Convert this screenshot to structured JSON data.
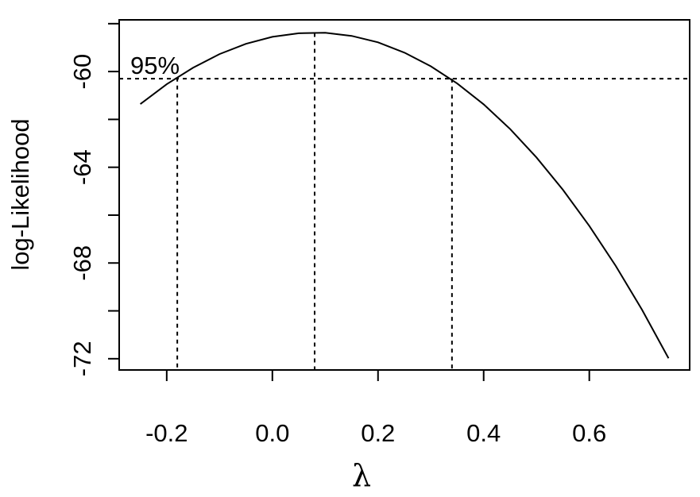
{
  "chart_data": {
    "type": "line",
    "xlabel": "λ",
    "ylabel": "log-Likelihood",
    "annotation": "95%",
    "x": [
      -0.25,
      -0.2,
      -0.15,
      -0.1,
      -0.05,
      0.0,
      0.05,
      0.1,
      0.15,
      0.2,
      0.25,
      0.3,
      0.35,
      0.4,
      0.45,
      0.5,
      0.55,
      0.6,
      0.65,
      0.7,
      0.75
    ],
    "series": [
      {
        "color": "#000000",
        "values": [
          -61.36,
          -60.53,
          -59.84,
          -59.27,
          -58.84,
          -58.55,
          -58.4,
          -58.38,
          -58.51,
          -58.78,
          -59.21,
          -59.78,
          -60.5,
          -61.37,
          -62.4,
          -63.59,
          -64.94,
          -66.45,
          -68.12,
          -69.96,
          -71.98
        ]
      }
    ],
    "vlines": [
      -0.18,
      0.08,
      0.34
    ],
    "hline": -60.3,
    "xlim": [
      -0.29,
      0.79
    ],
    "ylim": [
      -72.47,
      -57.84
    ],
    "xticks": [
      -0.2,
      {
        "value": 0.0,
        "label": "0.0"
      },
      0.2,
      0.4,
      0.6
    ],
    "yticks": [
      {
        "value": -58,
        "label": null
      },
      -60,
      {
        "value": -62,
        "label": null
      },
      -64,
      {
        "value": -66,
        "label": null
      },
      -68,
      {
        "value": -70,
        "label": null
      },
      -72
    ]
  }
}
